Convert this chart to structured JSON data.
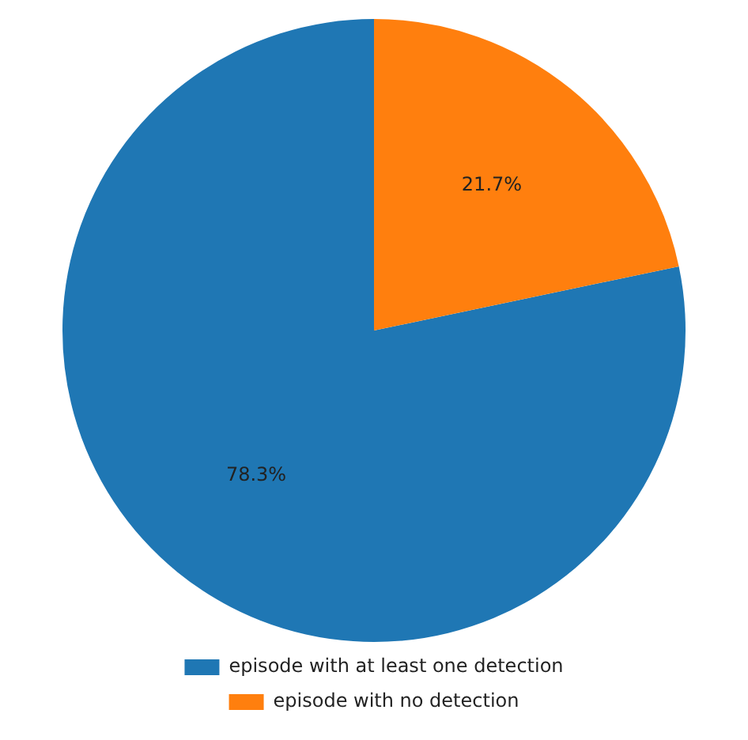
{
  "chart_data": {
    "type": "pie",
    "categories": [
      "episode with at least one detection",
      "episode with no detection"
    ],
    "values": [
      78.3,
      21.7
    ],
    "colors": [
      "#1f77b4",
      "#ff7f0e"
    ],
    "value_labels": [
      "78.3%",
      "21.7%"
    ],
    "legend": "bottom"
  }
}
